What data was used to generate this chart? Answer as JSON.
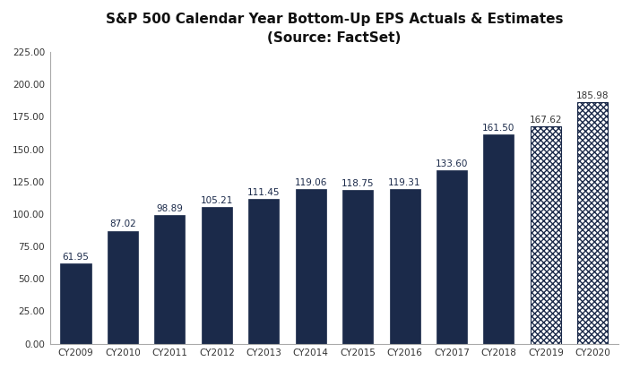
{
  "title_line1": "S&P 500 Calendar Year Bottom-Up EPS Actuals & Estimates",
  "title_line2": "(Source: FactSet)",
  "categories": [
    "CY2009",
    "CY2010",
    "CY2011",
    "CY2012",
    "CY2013",
    "CY2014",
    "CY2015",
    "CY2016",
    "CY2017",
    "CY2018",
    "CY2019",
    "CY2020"
  ],
  "values": [
    61.95,
    87.02,
    98.89,
    105.21,
    111.45,
    119.06,
    118.75,
    119.31,
    133.6,
    161.5,
    167.62,
    185.98
  ],
  "solid_color": "#1b2a4a",
  "hatch_color": "#1b2a4a",
  "hatch_face_color": "#ffffff",
  "estimate_indices": [
    10,
    11
  ],
  "ylim": [
    0,
    225
  ],
  "yticks": [
    0.0,
    25.0,
    50.0,
    75.0,
    100.0,
    125.0,
    150.0,
    175.0,
    200.0,
    225.0
  ],
  "bg_color": "#ffffff",
  "title_fontsize": 11,
  "subtitle_fontsize": 10,
  "label_fontsize": 7.5,
  "tick_fontsize": 7.5,
  "bar_width": 0.65
}
